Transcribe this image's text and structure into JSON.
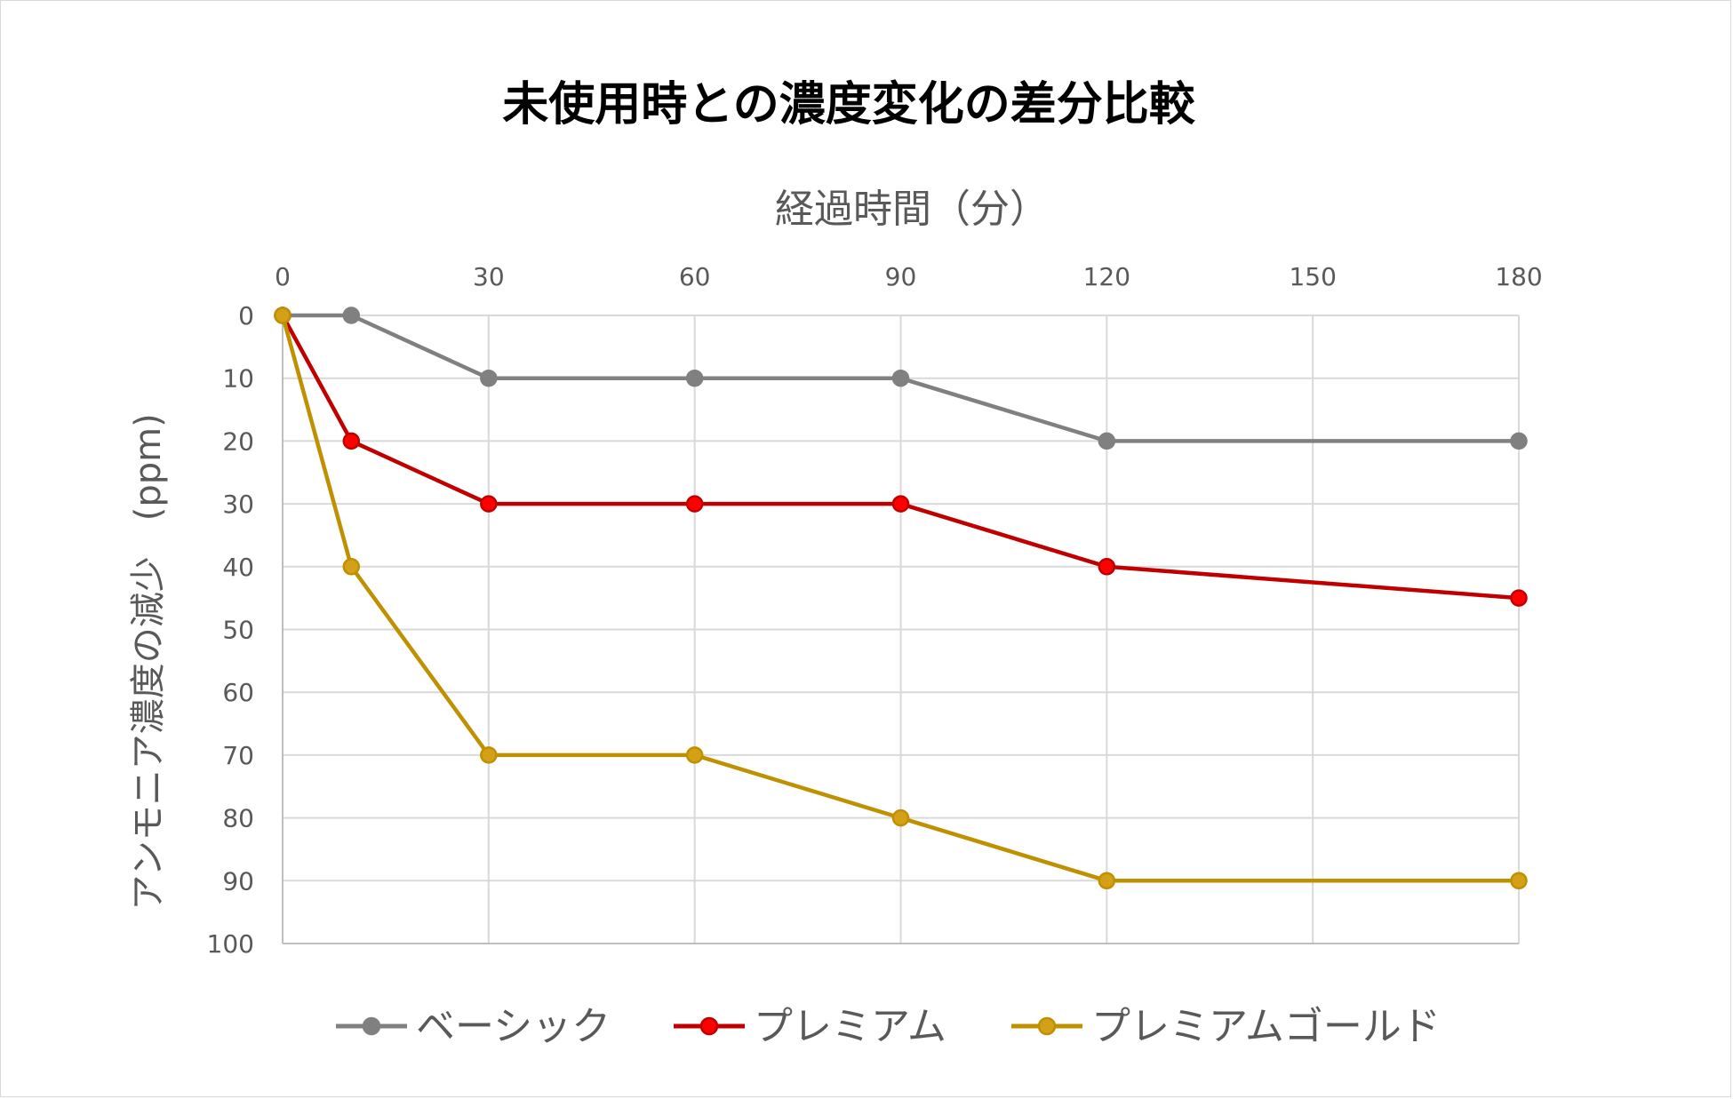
{
  "chart_data": {
    "type": "line",
    "title": "未使用時との濃度変化の差分比較",
    "xlabel": "経過時間（分）",
    "ylabel": "アンモニア濃度の減少　(ppm)",
    "x_axis_position": "top",
    "y_axis_reversed": true,
    "xlim": [
      0,
      180
    ],
    "ylim": [
      0,
      100
    ],
    "x_ticks": [
      0,
      30,
      60,
      90,
      120,
      150,
      180
    ],
    "y_ticks": [
      0,
      10,
      20,
      30,
      40,
      50,
      60,
      70,
      80,
      90,
      100
    ],
    "grid": true,
    "legend_position": "bottom",
    "x": [
      0,
      10,
      30,
      60,
      90,
      120,
      180
    ],
    "series": [
      {
        "name": "ベーシック",
        "color": "#808080",
        "values": [
          0,
          0,
          10,
          10,
          10,
          20,
          20
        ]
      },
      {
        "name": "プレミアム",
        "color": "#c00000",
        "marker_color": "#ff0000",
        "values": [
          0,
          20,
          30,
          30,
          30,
          40,
          45
        ]
      },
      {
        "name": "プレミアムゴールド",
        "color": "#bf9000",
        "marker_color": "#d4a017",
        "values": [
          0,
          40,
          70,
          70,
          80,
          90,
          90
        ]
      }
    ]
  }
}
